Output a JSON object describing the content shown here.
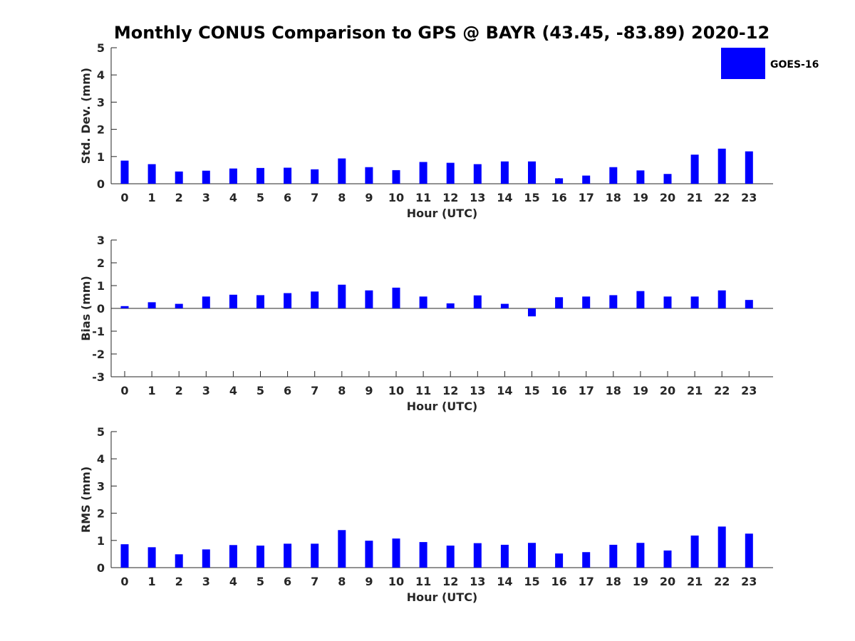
{
  "chart_data": {
    "title": "Monthly CONUS Comparison to GPS @ BAYR (43.45, -83.89) 2020-12",
    "bar_color": "#0000FF",
    "legend": {
      "label": "GOES-16",
      "placement": "top-right"
    },
    "categories": [
      "0",
      "1",
      "2",
      "3",
      "4",
      "5",
      "6",
      "7",
      "8",
      "9",
      "10",
      "11",
      "12",
      "13",
      "14",
      "15",
      "16",
      "17",
      "18",
      "19",
      "20",
      "21",
      "22",
      "23"
    ],
    "panels": [
      {
        "type": "bar",
        "ylabel": "Std. Dev. (mm)",
        "xlabel": "Hour (UTC)",
        "ylim": [
          0,
          5
        ],
        "yticks": [
          "0",
          "1",
          "2",
          "3",
          "4",
          "5"
        ],
        "series": [
          {
            "name": "GOES-16",
            "values": [
              0.85,
              0.72,
              0.45,
              0.48,
              0.56,
              0.58,
              0.59,
              0.53,
              0.93,
              0.61,
              0.5,
              0.8,
              0.77,
              0.72,
              0.82,
              0.82,
              0.2,
              0.3,
              0.61,
              0.49,
              0.36,
              1.07,
              1.29,
              1.19
            ]
          }
        ]
      },
      {
        "type": "bar",
        "ylabel": "Bias (mm)",
        "xlabel": "Hour (UTC)",
        "ylim": [
          -3,
          3
        ],
        "yticks": [
          "-3",
          "-2",
          "-1",
          "0",
          "1",
          "2",
          "3"
        ],
        "series": [
          {
            "name": "GOES-16",
            "values": [
              0.1,
              0.27,
              0.2,
              0.52,
              0.6,
              0.58,
              0.67,
              0.74,
              1.04,
              0.79,
              0.91,
              0.52,
              0.22,
              0.57,
              0.2,
              -0.35,
              0.49,
              0.52,
              0.58,
              0.76,
              0.52,
              0.52,
              0.79,
              0.37
            ]
          }
        ]
      },
      {
        "type": "bar",
        "ylabel": "RMS (mm)",
        "xlabel": "Hour (UTC)",
        "ylim": [
          0,
          5
        ],
        "yticks": [
          "0",
          "1",
          "2",
          "3",
          "4",
          "5"
        ],
        "series": [
          {
            "name": "GOES-16",
            "values": [
              0.86,
              0.75,
              0.49,
              0.67,
              0.83,
              0.81,
              0.88,
              0.88,
              1.38,
              0.99,
              1.07,
              0.94,
              0.81,
              0.9,
              0.84,
              0.91,
              0.52,
              0.57,
              0.84,
              0.91,
              0.63,
              1.18,
              1.51,
              1.25
            ]
          }
        ]
      }
    ]
  }
}
